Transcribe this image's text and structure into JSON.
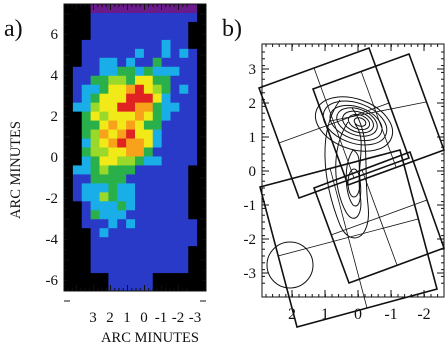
{
  "panel_a": {
    "label": "a)",
    "xlabel": "ARC MINUTES",
    "ylabel": "ARC MINUTES",
    "yticks": [
      "6",
      "4",
      "2",
      "0",
      "-2",
      "-4",
      "-6"
    ],
    "xticks": [
      "3",
      "2",
      "1",
      "0",
      "-1",
      "-2",
      "-3"
    ]
  },
  "panel_b": {
    "label": "b)",
    "yticks": [
      "3",
      "2",
      "1",
      "0",
      "-1",
      "-2",
      "-3"
    ],
    "xticks": [
      "2",
      "1",
      "0",
      "-1",
      "-2"
    ]
  },
  "chart_data": [
    {
      "type": "heatmap",
      "xlabel": "ARC MINUTES",
      "ylabel": "ARC MINUTES",
      "xlim": [
        3.9,
        -3.9
      ],
      "ylim": [
        -7,
        7
      ],
      "xticks": [
        3,
        2,
        1,
        0,
        -1,
        -2,
        -3
      ],
      "yticks": [
        6,
        4,
        2,
        0,
        -2,
        -4,
        -6
      ],
      "colorscale": [
        "black",
        "purple",
        "blue",
        "cyan",
        "green",
        "yellow",
        "orange",
        "red"
      ]
    },
    {
      "type": "contour",
      "xlim": [
        3,
        -3
      ],
      "ylim": [
        -3.8,
        3.8
      ],
      "xticks": [
        2,
        1,
        0,
        -1,
        -2
      ],
      "yticks": [
        3,
        2,
        1,
        0,
        -1,
        -2,
        -3
      ]
    }
  ]
}
